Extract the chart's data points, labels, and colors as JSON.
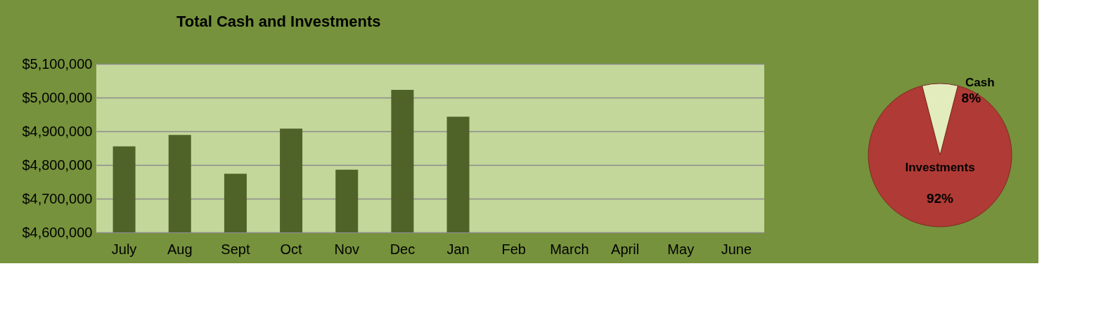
{
  "chart_data": [
    {
      "type": "bar",
      "title": "Total Cash and Investments",
      "categories": [
        "July",
        "Aug",
        "Sept",
        "Oct",
        "Nov",
        "Dec",
        "Jan",
        "Feb",
        "March",
        "April",
        "May",
        "June"
      ],
      "values": [
        4855000,
        4889000,
        4774000,
        4908000,
        4786000,
        5023000,
        4943000,
        null,
        null,
        null,
        null,
        null
      ],
      "color": "#4f6228",
      "ylim": [
        4600000,
        5100000
      ],
      "yticks": [
        {
          "value": 4600000,
          "label": "$4,600,000"
        },
        {
          "value": 4700000,
          "label": "$4,700,000"
        },
        {
          "value": 4800000,
          "label": "$4,800,000"
        },
        {
          "value": 4900000,
          "label": "$4,900,000"
        },
        {
          "value": 5000000,
          "label": "$5,000,000"
        },
        {
          "value": 5100000,
          "label": "$5,100,000"
        }
      ],
      "grid": "y"
    },
    {
      "type": "pie",
      "categories": [
        "Investments",
        "Cash"
      ],
      "values": [
        92,
        8
      ],
      "colors": [
        "#b03a35",
        "#e3ecbc"
      ],
      "value_labels": [
        "92%",
        "8%"
      ],
      "legend": false
    }
  ]
}
